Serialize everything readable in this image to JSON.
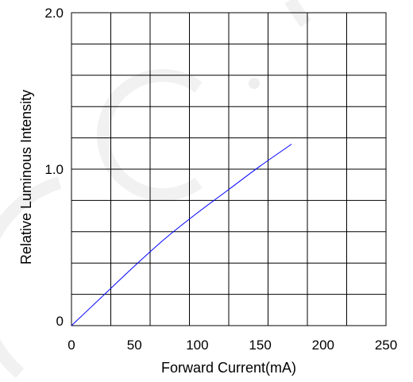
{
  "chart_data": {
    "type": "line",
    "xlabel": "Forward Current(mA)",
    "ylabel": "Relative Luminous Intensity",
    "xlim": [
      0,
      250
    ],
    "ylim": [
      0,
      2.0
    ],
    "x_ticks": [
      0,
      50,
      100,
      150,
      200,
      250
    ],
    "x_tick_labels": [
      "0",
      "50",
      "100",
      "150",
      "200",
      "250"
    ],
    "y_ticks": [
      0,
      1.0,
      2.0
    ],
    "y_tick_labels": [
      "0",
      "1.0",
      "2.0"
    ],
    "grid": true,
    "grid_divisions": {
      "x": 8,
      "y": 10
    },
    "series": [
      {
        "color": "#0000ff",
        "x": [
          0,
          25,
          50,
          75,
          100,
          125,
          150,
          175
        ],
        "y": [
          0,
          0.19,
          0.38,
          0.56,
          0.72,
          0.87,
          1.02,
          1.16
        ]
      }
    ]
  },
  "watermark": {
    "color": "#f2f2f2"
  }
}
